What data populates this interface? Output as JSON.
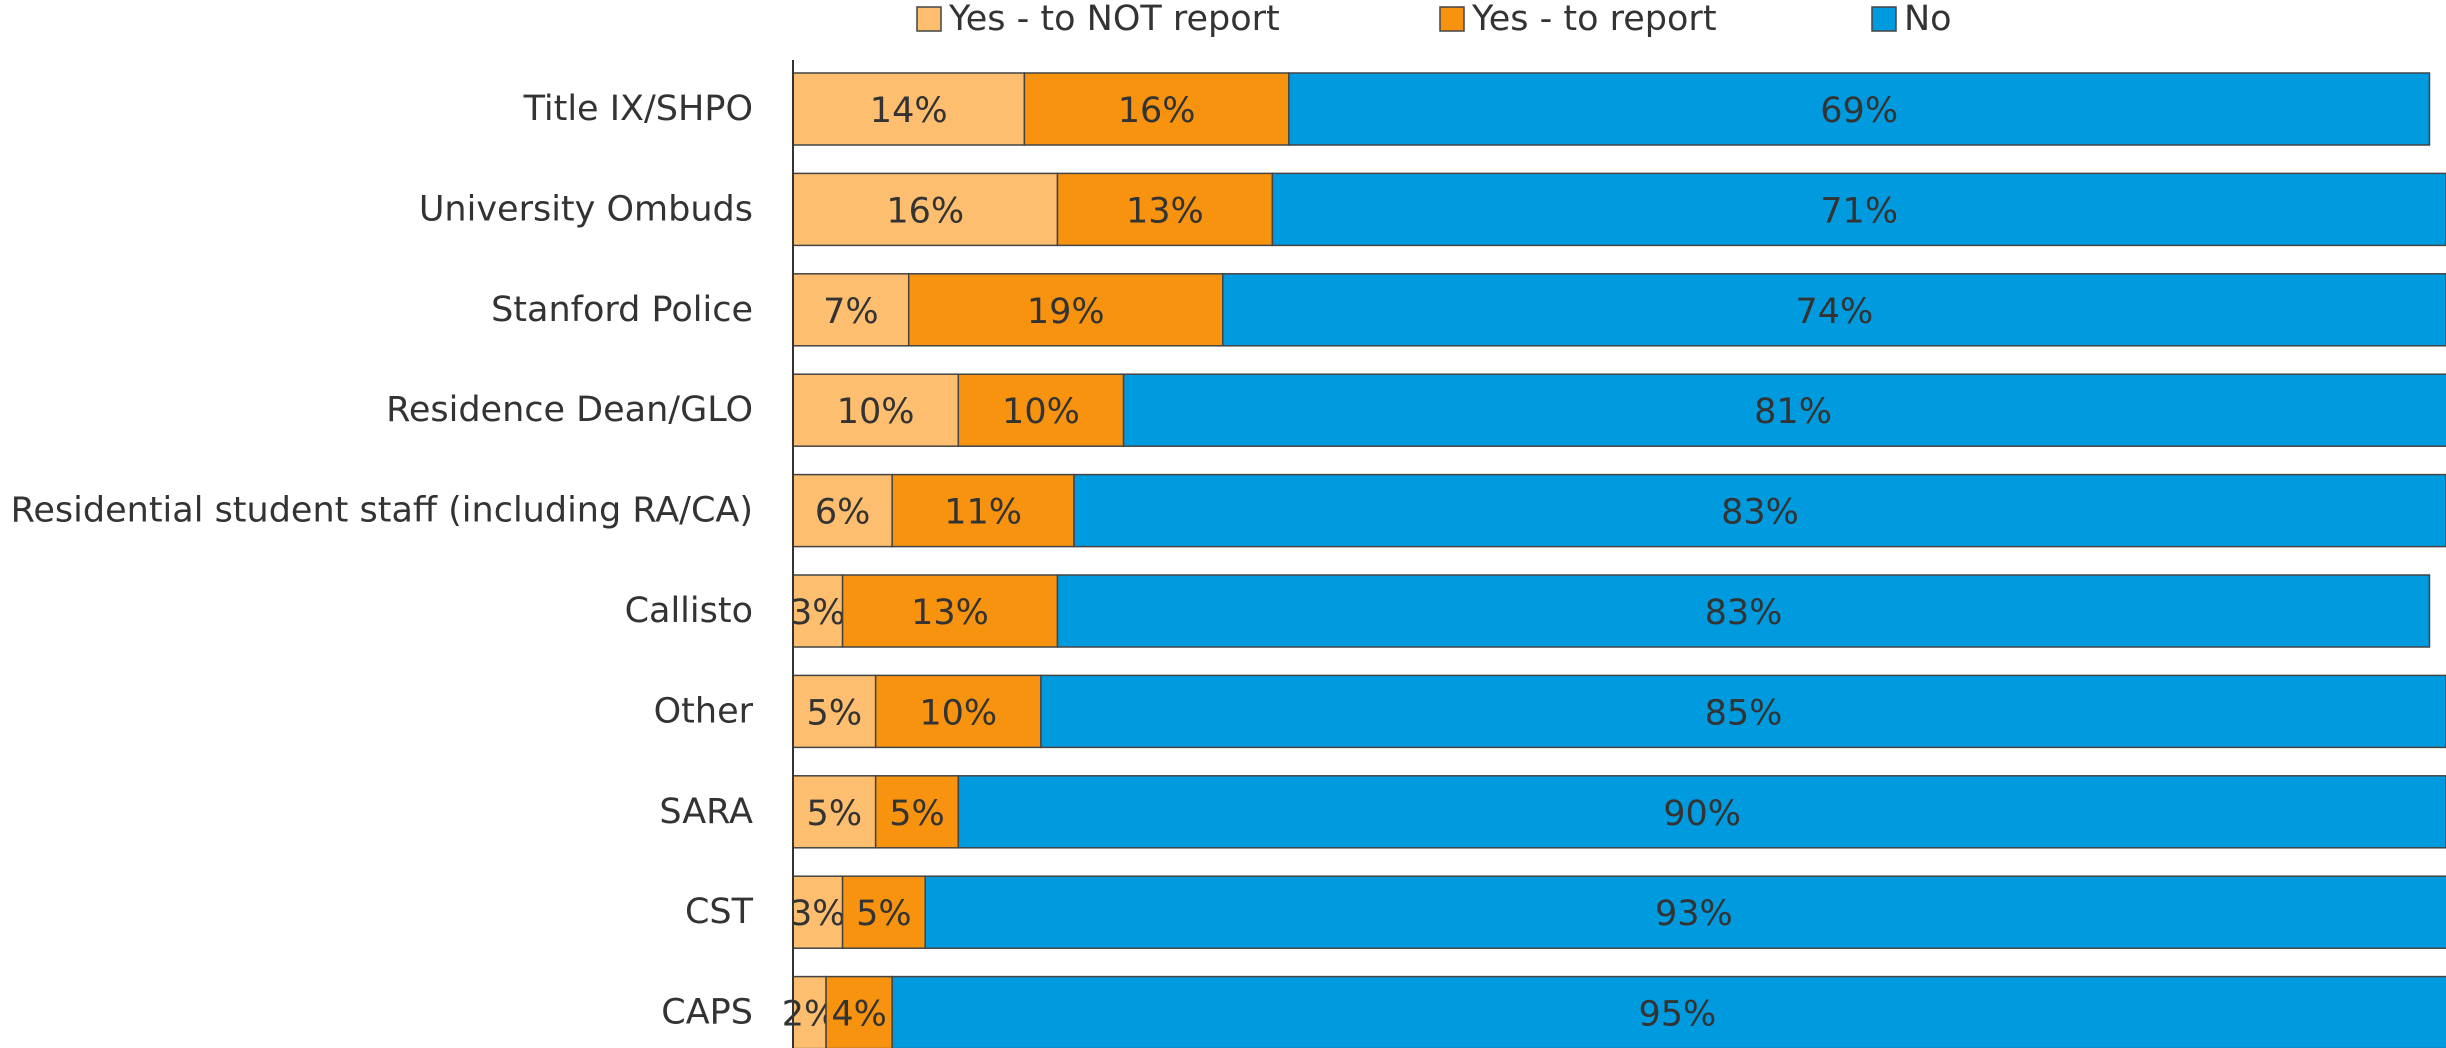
{
  "chart_data": {
    "type": "stacked_barh",
    "categories": [
      "Title IX/SHPO",
      "University Ombuds",
      "Stanford Police",
      "Residence Dean/GLO",
      "Residential student staff (including RA/CA)",
      "Callisto",
      "Other",
      "SARA",
      "CST",
      "CAPS"
    ],
    "series": [
      {
        "name": "Yes - to NOT report",
        "color": "#fdbf6f",
        "values": [
          14,
          16,
          7,
          10,
          6,
          3,
          5,
          5,
          3,
          2
        ],
        "value_labels": [
          "14%",
          "16%",
          "7%",
          "10%",
          "6%",
          "3%",
          "5%",
          "5%",
          "3%",
          "2%"
        ]
      },
      {
        "name": "Yes - to report",
        "color": "#f7930f",
        "values": [
          16,
          13,
          19,
          10,
          11,
          13,
          10,
          5,
          5,
          4
        ],
        "value_labels": [
          "16%",
          "13%",
          "19%",
          "10%",
          "11%",
          "13%",
          "10%",
          "5%",
          "5%",
          "4%"
        ]
      },
      {
        "name": "No",
        "color": "#009bde",
        "values": [
          69,
          71,
          74,
          81,
          83,
          83,
          85,
          90,
          93,
          95
        ],
        "value_labels": [
          "69%",
          "71%",
          "74%",
          "81%",
          "83%",
          "83%",
          "85%",
          "90%",
          "93%",
          "95%"
        ]
      }
    ],
    "xlim": [
      0,
      100
    ],
    "legend": "top"
  }
}
